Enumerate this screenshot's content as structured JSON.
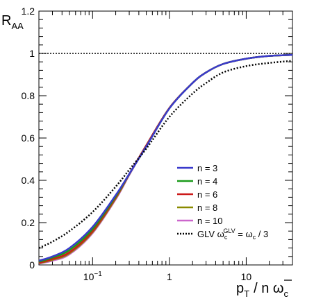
{
  "chart_data": {
    "type": "line",
    "xscale": "log",
    "xlim": [
      0.02,
      40
    ],
    "ylim": [
      0,
      1.2
    ],
    "x_ticks": [
      {
        "value": 0.1,
        "base": "10",
        "exp": "−1"
      },
      {
        "value": 1,
        "label": "1"
      },
      {
        "value": 10,
        "label": "10"
      }
    ],
    "y_ticks": [
      "0",
      "0.2",
      "0.4",
      "0.6",
      "0.8",
      "1",
      "1.2"
    ],
    "ylabel": {
      "main": "R",
      "sub": "AA"
    },
    "xlabel": {
      "p": "p",
      "sub": "T",
      "rest": "/  n ",
      "omega": "ω",
      "omega_sub": "c"
    },
    "reference_line": {
      "y": 1,
      "style": "dotted"
    },
    "legend_position": "lower-right",
    "series": [
      {
        "name": "n = 3",
        "color": "#3a3acc",
        "style": "solid",
        "x": [
          0.02,
          0.03,
          0.05,
          0.1,
          0.2,
          0.3,
          0.5,
          1,
          2,
          3,
          5,
          10,
          20,
          40
        ],
        "y": [
          0.02,
          0.04,
          0.08,
          0.18,
          0.33,
          0.43,
          0.56,
          0.74,
          0.86,
          0.91,
          0.95,
          0.975,
          0.988,
          0.993
        ]
      },
      {
        "name": "n = 4",
        "color": "#1a9a1a",
        "style": "solid",
        "x": [
          0.02,
          0.03,
          0.05,
          0.1,
          0.2,
          0.3,
          0.5,
          1,
          2,
          3,
          5,
          10,
          20,
          40
        ],
        "y": [
          0.015,
          0.035,
          0.07,
          0.17,
          0.325,
          0.43,
          0.56,
          0.74,
          0.86,
          0.91,
          0.95,
          0.975,
          0.988,
          0.993
        ]
      },
      {
        "name": "n = 6",
        "color": "#cc1a1a",
        "style": "solid",
        "x": [
          0.02,
          0.03,
          0.05,
          0.1,
          0.2,
          0.3,
          0.5,
          1,
          2,
          3,
          5,
          10,
          20,
          40
        ],
        "y": [
          0.01,
          0.028,
          0.06,
          0.16,
          0.32,
          0.43,
          0.565,
          0.742,
          0.86,
          0.91,
          0.95,
          0.975,
          0.988,
          0.993
        ]
      },
      {
        "name": "n = 8",
        "color": "#8a8a00",
        "style": "solid",
        "x": [
          0.02,
          0.03,
          0.05,
          0.1,
          0.2,
          0.3,
          0.5,
          1,
          2,
          3,
          5,
          10,
          20,
          40
        ],
        "y": [
          0.008,
          0.024,
          0.055,
          0.155,
          0.315,
          0.428,
          0.565,
          0.742,
          0.86,
          0.91,
          0.95,
          0.975,
          0.988,
          0.993
        ]
      },
      {
        "name": "n = 10",
        "color": "#cc66cc",
        "style": "solid",
        "x": [
          0.02,
          0.03,
          0.05,
          0.1,
          0.2,
          0.3,
          0.5,
          1,
          2,
          3,
          5,
          10,
          20,
          40
        ],
        "y": [
          0.006,
          0.02,
          0.05,
          0.15,
          0.31,
          0.425,
          0.565,
          0.742,
          0.86,
          0.91,
          0.95,
          0.975,
          0.988,
          0.993
        ]
      },
      {
        "name": "GLV ωc^GLV = ωc / 3",
        "color": "#000000",
        "style": "dotted",
        "x": [
          0.02,
          0.03,
          0.05,
          0.1,
          0.2,
          0.3,
          0.5,
          1,
          2,
          3,
          5,
          10,
          20,
          40
        ],
        "y": [
          0.08,
          0.11,
          0.16,
          0.25,
          0.37,
          0.45,
          0.55,
          0.7,
          0.81,
          0.86,
          0.91,
          0.94,
          0.955,
          0.965
        ]
      }
    ]
  },
  "legend": {
    "labels": [
      "n = 3",
      "n = 4",
      "n = 6",
      "n = 8",
      "n = 10"
    ],
    "glv": {
      "prefix": "GLV  ",
      "omega": "ω",
      "c": "c",
      "sup": "GLV",
      "mid": " = ",
      "tail": " / 3"
    }
  }
}
